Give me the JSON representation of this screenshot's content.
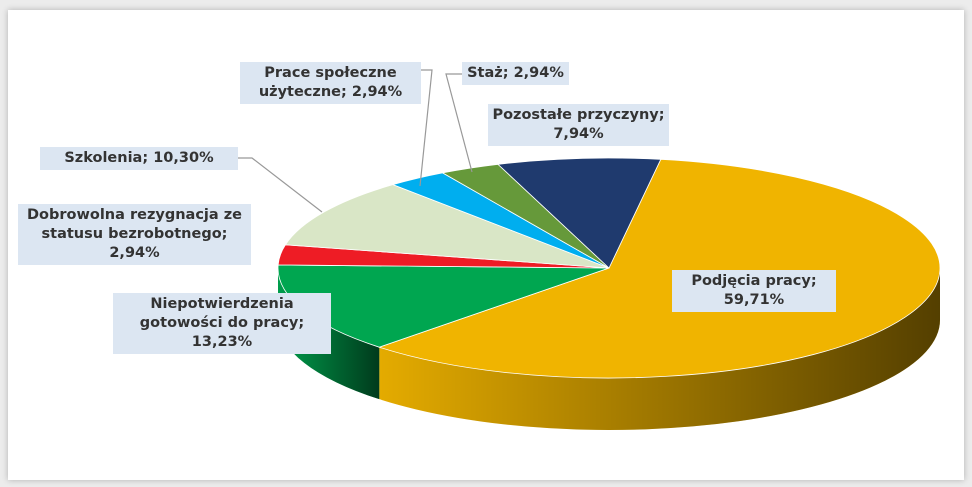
{
  "chart_data": {
    "type": "pie3d",
    "categories": [
      "Podjęcia pracy",
      "Niepotwierdzenia gotowości do pracy",
      "Dobrowolna rezygnacja ze statusu bezrobotnego",
      "Szkolenia",
      "Prace społeczne użyteczne",
      "Staż",
      "Pozostałe przyczyny"
    ],
    "values": [
      59.71,
      13.23,
      2.94,
      10.3,
      2.94,
      2.94,
      7.94
    ],
    "value_labels": [
      "59,71%",
      "13,23%",
      "2,94%",
      "10,30%",
      "2,94%",
      "2,94%",
      "7,94%"
    ],
    "label_separator": ";",
    "colors": [
      "#f0b400",
      "#00a650",
      "#ee1c25",
      "#d9e6c6",
      "#00aeef",
      "#66993a",
      "#1f3a6e"
    ]
  }
}
